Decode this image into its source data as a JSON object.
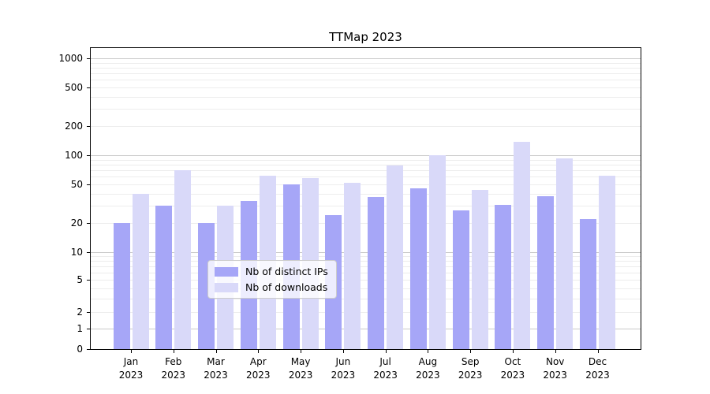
{
  "title": "TTMap 2023",
  "chart_data": {
    "type": "bar",
    "title": "TTMap 2023",
    "categories": [
      "Jan",
      "Feb",
      "Mar",
      "Apr",
      "May",
      "Jun",
      "Jul",
      "Aug",
      "Sep",
      "Oct",
      "Nov",
      "Dec"
    ],
    "year": "2023",
    "series": [
      {
        "name": "Nb of distinct IPs",
        "color": "#a6a6f7",
        "values": [
          20,
          30,
          20,
          34,
          50,
          24,
          37,
          46,
          27,
          31,
          38,
          22
        ]
      },
      {
        "name": "Nb of downloads",
        "color": "#d9d9f9",
        "values": [
          40,
          70,
          30,
          62,
          58,
          52,
          78,
          100,
          44,
          138,
          93,
          61
        ]
      }
    ],
    "xlabel": "",
    "ylabel": "",
    "yscale": "asinh-log (log above ~2, linear near 0)",
    "yticks": [
      0,
      1,
      2,
      5,
      10,
      20,
      50,
      100,
      200,
      500,
      1000
    ],
    "ylim": [
      0,
      1270
    ],
    "grid": "horizontal, minor light + major at decades",
    "legend_position": "inside bottom-center",
    "bar_colors_note": "semi-transparent blue bars on white"
  },
  "legend": {
    "items": [
      "Nb of distinct IPs",
      "Nb of downloads"
    ]
  },
  "colors": {
    "series1": "#a6a6f7",
    "series2": "#d9d9f9",
    "grid_major": "#c9c9c9",
    "grid_minor": "#ededed",
    "axis": "#000000",
    "background": "#ffffff"
  }
}
